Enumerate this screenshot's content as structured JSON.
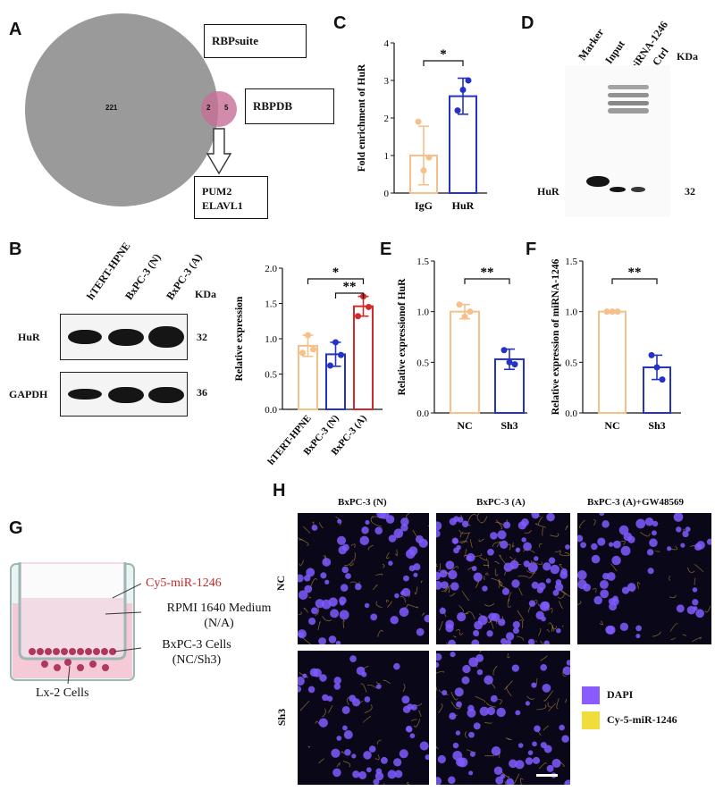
{
  "panels": {
    "A": "A",
    "B": "B",
    "C": "C",
    "D": "D",
    "E": "E",
    "F": "F",
    "G": "G",
    "H": "H"
  },
  "venn": {
    "left_count": "221",
    "overlap_count": "2",
    "right_count": "5",
    "rbpsuite_label": "RBPsuite",
    "rbpdb_label": "RBPDB",
    "result_lines": [
      "PUM2",
      "ELAVL1"
    ]
  },
  "blot_b": {
    "lanes": [
      "hTERT-HPNE",
      "BxPC-3 (N)",
      "BxPC-3 (A)"
    ],
    "kda_header": "KDa",
    "rows": [
      {
        "protein": "HuR",
        "kda": "32"
      },
      {
        "protein": "GAPDH",
        "kda": "36"
      }
    ]
  },
  "blot_d": {
    "lanes": [
      "Marker",
      "Input",
      "miRNA-1246",
      "Ctrl"
    ],
    "kda_header": "KDa",
    "protein": "HuR",
    "kda": "32"
  },
  "chart_data": [
    {
      "panel": "B",
      "type": "bar",
      "ylabel": "Relative expression",
      "categories": [
        "hTERT-HPNE",
        "BxPC-3 (N)",
        "BxPC-3 (A)"
      ],
      "values": [
        0.9,
        0.78,
        1.46
      ],
      "errors": [
        0.15,
        0.17,
        0.14
      ],
      "points": [
        [
          0.8,
          1.05,
          0.85
        ],
        [
          0.62,
          0.95,
          0.77
        ],
        [
          1.32,
          1.6,
          1.45
        ]
      ],
      "colors": [
        "#f5c08a",
        "#2433c4",
        "#d12a2a"
      ],
      "ylim": [
        0,
        2.0
      ],
      "yticks": [
        "0.0",
        "0.5",
        "1.0",
        "1.5",
        "2.0"
      ],
      "significance": [
        "*",
        "**"
      ]
    },
    {
      "panel": "C",
      "type": "bar",
      "ylabel": "Fold enrichment of HuR",
      "categories": [
        "IgG",
        "HuR"
      ],
      "values": [
        1.0,
        2.58
      ],
      "errors": [
        0.78,
        0.48
      ],
      "points": [
        [
          1.9,
          0.6,
          0.95
        ],
        [
          2.2,
          2.75,
          3.0
        ]
      ],
      "colors": [
        "#f5c08a",
        "#2433c4"
      ],
      "ylim": [
        0,
        4
      ],
      "yticks": [
        "0",
        "1",
        "2",
        "3",
        "4"
      ],
      "significance": [
        "*"
      ]
    },
    {
      "panel": "E",
      "type": "bar",
      "ylabel": "Relative expressionof HuR",
      "categories": [
        "NC",
        "Sh3"
      ],
      "values": [
        1.0,
        0.53
      ],
      "errors": [
        0.07,
        0.1
      ],
      "points": [
        [
          1.07,
          0.95,
          1.0
        ],
        [
          0.62,
          0.5,
          0.48
        ]
      ],
      "colors": [
        "#f5c08a",
        "#2433c4"
      ],
      "ylim": [
        0,
        1.5
      ],
      "yticks": [
        "0.0",
        "0.5",
        "1.0",
        "1.5"
      ],
      "significance": [
        "**"
      ]
    },
    {
      "panel": "F",
      "type": "bar",
      "ylabel": "Relative expression of miRNA-1246",
      "categories": [
        "NC",
        "Sh3"
      ],
      "values": [
        1.0,
        0.45
      ],
      "errors": [
        0.01,
        0.12
      ],
      "points": [
        [
          1.0,
          1.0,
          1.0
        ],
        [
          0.57,
          0.45,
          0.33
        ]
      ],
      "colors": [
        "#f5c08a",
        "#2433c4"
      ],
      "ylim": [
        0,
        1.5
      ],
      "yticks": [
        "0.0",
        "0.5",
        "1.0",
        "1.5"
      ],
      "significance": [
        "**"
      ]
    }
  ],
  "transwell": {
    "probe_label": "Cy5-miR-1246",
    "medium_line1": "RPMI 1640 Medium",
    "medium_line2": "(N/A)",
    "cells_line1": "BxPC-3 Cells",
    "cells_line2": "(NC/Sh3)",
    "bottom_cells": "Lx-2 Cells"
  },
  "microscopy": {
    "columns": [
      "BxPC-3 (N)",
      "BxPC-3 (A)",
      "BxPC-3 (A)+GW48569"
    ],
    "rows": [
      "NC",
      "Sh3"
    ],
    "legend": [
      {
        "label": "DAPI",
        "color": "#8a5cff"
      },
      {
        "label": "Cy-5-miR-1246",
        "color": "#f0dc3a"
      }
    ]
  }
}
